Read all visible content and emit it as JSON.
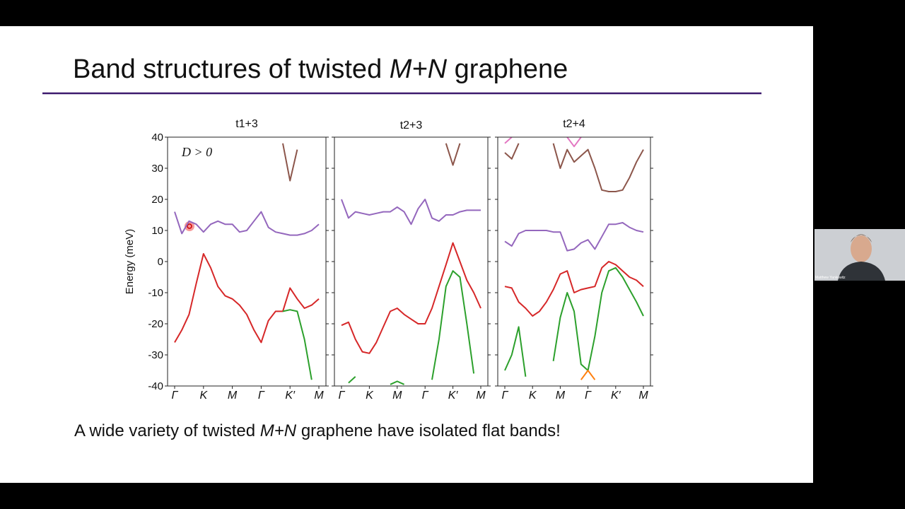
{
  "slide": {
    "title": [
      "Band structures of twisted",
      "M+N",
      "graphene"
    ],
    "caption": [
      "A wide variety of twisted",
      "M+N",
      "graphene have isolated flat bands!"
    ]
  },
  "webcam": {
    "name": "Matthew Yankowitz"
  },
  "chart_data": [
    {
      "type": "line",
      "title": "t1+3",
      "ylabel": "Energy (meV)",
      "annotation": "D > 0",
      "x": [
        0,
        0.25,
        0.5,
        0.75,
        1,
        1.25,
        1.5,
        1.75,
        2,
        2.25,
        2.5,
        2.75,
        3,
        3.25,
        3.5,
        3.75,
        4,
        4.25,
        4.5,
        4.75,
        5
      ],
      "xlim": [
        0,
        5
      ],
      "xticks": [
        {
          "value": 0,
          "label": "Γ"
        },
        {
          "value": 1,
          "label": "K"
        },
        {
          "value": 2,
          "label": "M"
        },
        {
          "value": 3,
          "label": "Γ"
        },
        {
          "value": 4,
          "label": "K′"
        },
        {
          "value": 5,
          "label": "M"
        }
      ],
      "ylim": [
        -40,
        40
      ],
      "yticks": [
        -40,
        -30,
        -20,
        -10,
        0,
        10,
        20,
        30,
        40
      ],
      "series": [
        {
          "name": "band-1",
          "color": "#9467bd",
          "values": [
            16,
            9,
            13,
            12,
            9.5,
            12,
            13,
            12,
            12,
            9.5,
            10,
            13,
            16,
            11,
            9.5,
            9,
            8.5,
            8.5,
            9,
            10,
            12
          ]
        },
        {
          "name": "band-2",
          "color": "#d62728",
          "values": [
            -26,
            -22,
            -17,
            -7,
            2.5,
            -2,
            -8,
            -11,
            -12,
            -14,
            -17,
            -22,
            -26,
            -19,
            -16,
            -16,
            -8.5,
            -12,
            -15,
            -14,
            -12
          ]
        },
        {
          "name": "band-3",
          "color": "#2ca02c",
          "values": [
            null,
            null,
            null,
            null,
            null,
            null,
            null,
            null,
            null,
            null,
            null,
            null,
            null,
            null,
            null,
            -16,
            -15.5,
            -16,
            -25,
            -38,
            null
          ]
        },
        {
          "name": "band-4",
          "color": "#8c564b",
          "values": [
            null,
            null,
            null,
            null,
            null,
            null,
            null,
            null,
            null,
            null,
            null,
            null,
            null,
            null,
            null,
            38,
            26,
            36,
            null,
            null,
            null
          ]
        }
      ]
    },
    {
      "type": "line",
      "title": "t2+3",
      "x": [
        0,
        0.25,
        0.5,
        0.75,
        1,
        1.25,
        1.5,
        1.75,
        2,
        2.25,
        2.5,
        2.75,
        3,
        3.25,
        3.5,
        3.75,
        4,
        4.25,
        4.5,
        4.75,
        5
      ],
      "xlim": [
        0,
        5
      ],
      "xticks": [
        {
          "value": 0,
          "label": "Γ"
        },
        {
          "value": 1,
          "label": "K"
        },
        {
          "value": 2,
          "label": "M"
        },
        {
          "value": 3,
          "label": "Γ"
        },
        {
          "value": 4,
          "label": "K′"
        },
        {
          "value": 5,
          "label": "M"
        }
      ],
      "ylim": [
        -40,
        40
      ],
      "yticks": [
        -40,
        -30,
        -20,
        -10,
        0,
        10,
        20,
        30,
        40
      ],
      "series": [
        {
          "name": "band-1",
          "color": "#9467bd",
          "values": [
            20,
            14,
            16,
            15.5,
            15,
            15.5,
            16,
            16,
            17.5,
            16,
            12,
            17,
            20,
            14,
            13,
            15,
            15,
            16,
            16.5,
            16.5,
            16.5
          ]
        },
        {
          "name": "band-2",
          "color": "#d62728",
          "values": [
            -20.5,
            -19.5,
            -25,
            -29,
            -29.5,
            -26,
            -21,
            -16,
            -15,
            -17,
            -18.5,
            -20,
            -20,
            -15,
            -8,
            -1,
            6,
            0,
            -6,
            -10,
            -15
          ]
        },
        {
          "name": "band-3",
          "color": "#2ca02c",
          "values": [
            null,
            -39,
            -37,
            null,
            null,
            null,
            null,
            -39.5,
            -38.5,
            -39.5,
            null,
            null,
            null,
            -38,
            -25,
            -8,
            -3,
            -5,
            -20,
            -36,
            null
          ]
        },
        {
          "name": "band-4",
          "color": "#8c564b",
          "values": [
            null,
            null,
            null,
            null,
            null,
            null,
            null,
            null,
            null,
            null,
            null,
            null,
            null,
            null,
            null,
            38,
            31,
            38,
            null,
            null,
            null
          ]
        }
      ]
    },
    {
      "type": "line",
      "title": "t2+4",
      "x": [
        0,
        0.25,
        0.5,
        0.75,
        1,
        1.25,
        1.5,
        1.75,
        2,
        2.25,
        2.5,
        2.75,
        3,
        3.25,
        3.5,
        3.75,
        4,
        4.25,
        4.5,
        4.75,
        5
      ],
      "xlim": [
        0,
        5
      ],
      "xticks": [
        {
          "value": 0,
          "label": "Γ"
        },
        {
          "value": 1,
          "label": "K"
        },
        {
          "value": 2,
          "label": "M"
        },
        {
          "value": 3,
          "label": "Γ"
        },
        {
          "value": 4,
          "label": "K′"
        },
        {
          "value": 5,
          "label": "M"
        }
      ],
      "ylim": [
        -40,
        40
      ],
      "yticks": [
        -40,
        -30,
        -20,
        -10,
        0,
        10,
        20,
        30,
        40
      ],
      "series": [
        {
          "name": "band-1",
          "color": "#9467bd",
          "values": [
            6.5,
            5,
            9,
            10,
            10,
            10,
            10,
            9.5,
            9.5,
            3.5,
            4,
            6,
            7,
            4,
            8,
            12,
            12,
            12.5,
            11,
            10,
            9.5
          ]
        },
        {
          "name": "band-2",
          "color": "#d62728",
          "values": [
            -8,
            -8.5,
            -13,
            -15,
            -17.5,
            -16,
            -13,
            -9,
            -4,
            -3,
            -10,
            -9,
            -8.5,
            -8,
            -2,
            0,
            -1,
            -3,
            -5,
            -6,
            -8
          ]
        },
        {
          "name": "band-3",
          "color": "#2ca02c",
          "values": [
            -35,
            -30,
            -21,
            -37,
            null,
            null,
            null,
            -32,
            -18,
            -10,
            -16,
            -33,
            -35,
            -24,
            -10,
            -3,
            -2,
            -5,
            -9,
            -13,
            -17.5
          ]
        },
        {
          "name": "band-4",
          "color": "#ff7f0e",
          "values": [
            -35,
            null,
            null,
            null,
            null,
            null,
            null,
            null,
            null,
            null,
            null,
            -38,
            -35,
            -38,
            null,
            null,
            null,
            null,
            null,
            null,
            null
          ]
        },
        {
          "name": "band-5",
          "color": "#8c564b",
          "values": [
            35,
            33,
            38,
            null,
            null,
            null,
            null,
            38,
            30,
            36,
            32,
            34,
            36,
            30,
            23,
            22.5,
            22.5,
            23,
            27,
            32,
            36
          ]
        },
        {
          "name": "band-6",
          "color": "#e377c2",
          "values": [
            38,
            40,
            null,
            null,
            null,
            null,
            null,
            null,
            null,
            40,
            37,
            40,
            null,
            null,
            null,
            null,
            null,
            null,
            null,
            null,
            null
          ]
        }
      ]
    }
  ]
}
